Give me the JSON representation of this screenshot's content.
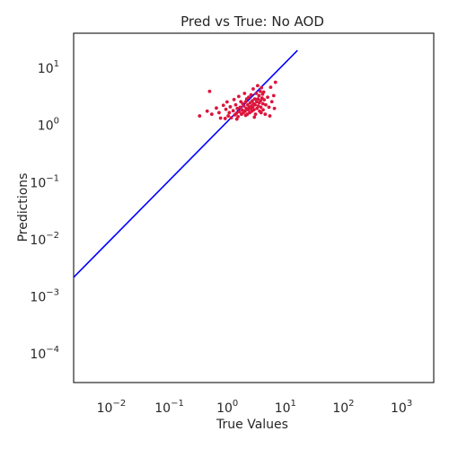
{
  "chart_data": {
    "type": "scatter",
    "title": "Pred vs True: No AOD",
    "xlabel": "True Values",
    "ylabel": "Predictions",
    "x_scale": "log",
    "y_scale": "log",
    "xlim": [
      0.0025,
      4000
    ],
    "ylim": [
      3e-05,
      40
    ],
    "x_ticks": [
      {
        "base": "10",
        "exp": "−2",
        "value": 0.01
      },
      {
        "base": "10",
        "exp": "−1",
        "value": 0.1
      },
      {
        "base": "10",
        "exp": "0",
        "value": 1
      },
      {
        "base": "10",
        "exp": "1",
        "value": 10
      },
      {
        "base": "10",
        "exp": "2",
        "value": 100
      },
      {
        "base": "10",
        "exp": "3",
        "value": 1000
      }
    ],
    "y_ticks": [
      {
        "base": "10",
        "exp": "−4",
        "value": 0.0001
      },
      {
        "base": "10",
        "exp": "−3",
        "value": 0.001
      },
      {
        "base": "10",
        "exp": "−2",
        "value": 0.01
      },
      {
        "base": "10",
        "exp": "−1",
        "value": 0.1
      },
      {
        "base": "10",
        "exp": "0",
        "value": 1
      },
      {
        "base": "10",
        "exp": "1",
        "value": 10
      }
    ],
    "grid": false,
    "reference_line": {
      "x": [
        0.0025,
        18
      ],
      "y": [
        0.0021,
        20
      ],
      "color": "#0000ff"
    },
    "point_color": "#dc143c",
    "points": [
      {
        "x": 0.37,
        "y": 1.42
      },
      {
        "x": 0.5,
        "y": 1.72
      },
      {
        "x": 0.55,
        "y": 3.82
      },
      {
        "x": 0.6,
        "y": 1.52
      },
      {
        "x": 0.72,
        "y": 1.95
      },
      {
        "x": 0.8,
        "y": 1.62
      },
      {
        "x": 0.85,
        "y": 1.3
      },
      {
        "x": 0.95,
        "y": 2.18
      },
      {
        "x": 1.02,
        "y": 1.28
      },
      {
        "x": 1.05,
        "y": 1.85
      },
      {
        "x": 1.1,
        "y": 2.5
      },
      {
        "x": 1.15,
        "y": 1.42
      },
      {
        "x": 1.2,
        "y": 1.62
      },
      {
        "x": 1.25,
        "y": 2.05
      },
      {
        "x": 1.3,
        "y": 1.32
      },
      {
        "x": 1.4,
        "y": 1.75
      },
      {
        "x": 1.45,
        "y": 2.75
      },
      {
        "x": 1.5,
        "y": 1.48
      },
      {
        "x": 1.55,
        "y": 2.22
      },
      {
        "x": 1.6,
        "y": 1.58
      },
      {
        "x": 1.65,
        "y": 1.92
      },
      {
        "x": 1.7,
        "y": 1.38
      },
      {
        "x": 1.75,
        "y": 3.12
      },
      {
        "x": 1.8,
        "y": 1.68
      },
      {
        "x": 1.85,
        "y": 2.02
      },
      {
        "x": 1.9,
        "y": 2.52
      },
      {
        "x": 1.95,
        "y": 1.52
      },
      {
        "x": 2.0,
        "y": 1.82
      },
      {
        "x": 2.05,
        "y": 2.32
      },
      {
        "x": 2.1,
        "y": 1.62
      },
      {
        "x": 2.15,
        "y": 2.12
      },
      {
        "x": 2.2,
        "y": 3.52
      },
      {
        "x": 2.25,
        "y": 1.72
      },
      {
        "x": 2.3,
        "y": 2.52
      },
      {
        "x": 2.35,
        "y": 1.92
      },
      {
        "x": 2.4,
        "y": 2.82
      },
      {
        "x": 2.45,
        "y": 1.52
      },
      {
        "x": 2.5,
        "y": 2.22
      },
      {
        "x": 2.55,
        "y": 1.82
      },
      {
        "x": 2.6,
        "y": 3.02
      },
      {
        "x": 2.65,
        "y": 2.02
      },
      {
        "x": 2.7,
        "y": 1.62
      },
      {
        "x": 2.75,
        "y": 2.42
      },
      {
        "x": 2.8,
        "y": 1.92
      },
      {
        "x": 2.85,
        "y": 3.32
      },
      {
        "x": 2.9,
        "y": 2.12
      },
      {
        "x": 2.95,
        "y": 1.72
      },
      {
        "x": 3.0,
        "y": 2.62
      },
      {
        "x": 3.05,
        "y": 2.02
      },
      {
        "x": 3.1,
        "y": 4.22
      },
      {
        "x": 3.15,
        "y": 2.32
      },
      {
        "x": 3.2,
        "y": 1.82
      },
      {
        "x": 3.3,
        "y": 2.82
      },
      {
        "x": 3.35,
        "y": 2.22
      },
      {
        "x": 3.4,
        "y": 1.52
      },
      {
        "x": 3.5,
        "y": 3.52
      },
      {
        "x": 3.55,
        "y": 2.52
      },
      {
        "x": 3.6,
        "y": 1.92
      },
      {
        "x": 3.7,
        "y": 4.82
      },
      {
        "x": 3.75,
        "y": 2.82
      },
      {
        "x": 3.8,
        "y": 2.12
      },
      {
        "x": 3.9,
        "y": 3.22
      },
      {
        "x": 3.95,
        "y": 2.42
      },
      {
        "x": 4.0,
        "y": 1.72
      },
      {
        "x": 4.1,
        "y": 3.82
      },
      {
        "x": 4.15,
        "y": 2.62
      },
      {
        "x": 4.2,
        "y": 2.02
      },
      {
        "x": 4.3,
        "y": 4.42
      },
      {
        "x": 4.4,
        "y": 2.92
      },
      {
        "x": 4.5,
        "y": 3.42
      },
      {
        "x": 4.55,
        "y": 2.32
      },
      {
        "x": 4.6,
        "y": 1.82
      },
      {
        "x": 4.7,
        "y": 3.72
      },
      {
        "x": 4.8,
        "y": 2.72
      },
      {
        "x": 5.0,
        "y": 1.52
      },
      {
        "x": 5.1,
        "y": 2.22
      },
      {
        "x": 5.5,
        "y": 3.02
      },
      {
        "x": 5.8,
        "y": 2.02
      },
      {
        "x": 6.0,
        "y": 1.42
      },
      {
        "x": 6.2,
        "y": 4.52
      },
      {
        "x": 6.5,
        "y": 2.52
      },
      {
        "x": 7.0,
        "y": 3.22
      },
      {
        "x": 7.2,
        "y": 1.92
      },
      {
        "x": 7.5,
        "y": 5.52
      },
      {
        "x": 3.25,
        "y": 1.35
      },
      {
        "x": 2.3,
        "y": 1.45
      },
      {
        "x": 1.62,
        "y": 1.25
      },
      {
        "x": 4.25,
        "y": 1.62
      }
    ]
  }
}
